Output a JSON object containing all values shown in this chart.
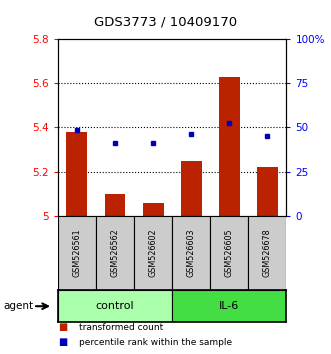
{
  "title": "GDS3773 / 10409170",
  "samples": [
    "GSM526561",
    "GSM526562",
    "GSM526602",
    "GSM526603",
    "GSM526605",
    "GSM526678"
  ],
  "bar_values": [
    5.38,
    5.1,
    5.06,
    5.25,
    5.63,
    5.22
  ],
  "dot_values": [
    5.39,
    5.33,
    5.33,
    5.37,
    5.42,
    5.36
  ],
  "ylim_left": [
    5.0,
    5.8
  ],
  "ylim_right": [
    0,
    100
  ],
  "yticks_left": [
    5.0,
    5.2,
    5.4,
    5.6,
    5.8
  ],
  "yticks_right": [
    0,
    25,
    50,
    75,
    100
  ],
  "ytick_labels_left": [
    "5",
    "5.2",
    "5.4",
    "5.6",
    "5.8"
  ],
  "ytick_labels_right": [
    "0",
    "25",
    "50",
    "75",
    "100%"
  ],
  "gridlines": [
    5.2,
    5.4,
    5.6
  ],
  "control_color": "#aaffaa",
  "il6_color": "#44dd44",
  "bar_color": "#bb2200",
  "dot_color": "#0000bb",
  "sample_box_color": "#cccccc",
  "bar_width": 0.55,
  "legend_items": [
    {
      "label": "transformed count",
      "color": "#bb2200"
    },
    {
      "label": "percentile rank within the sample",
      "color": "#0000bb"
    }
  ]
}
